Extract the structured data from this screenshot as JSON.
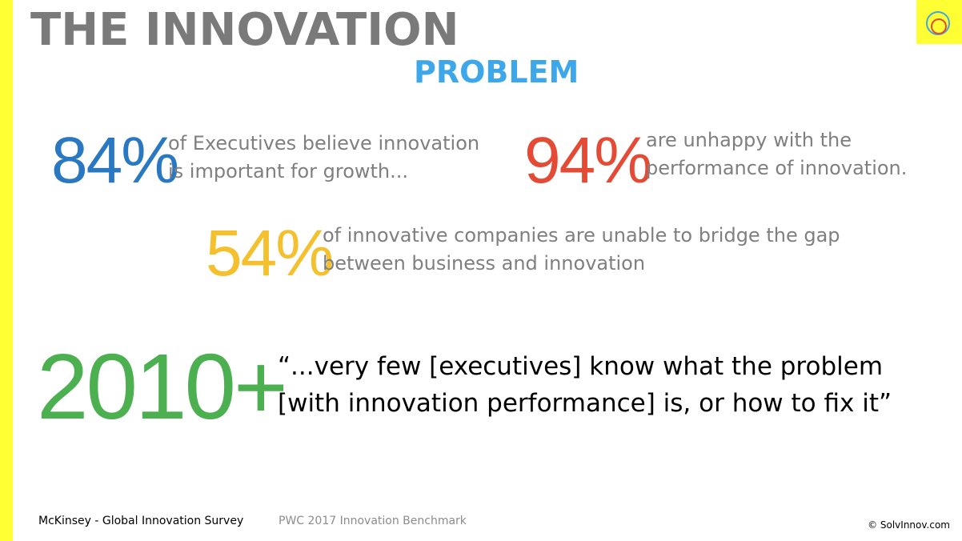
{
  "title": {
    "main": "THE INNOVATION",
    "sub": "PROBLEM"
  },
  "stats": [
    {
      "value": "84%",
      "lines": [
        "of Executives believe innovation",
        "is important for growth..."
      ]
    },
    {
      "value": "94%",
      "lines": [
        "are unhappy with the",
        "performance of innovation."
      ]
    },
    {
      "value": "54%",
      "lines": [
        "of innovative companies are unable to bridge the gap",
        "between business and innovation"
      ]
    },
    {
      "value": "2010+"
    }
  ],
  "quote": {
    "lines": [
      "“...very few [executives] know what the problem",
      "[with innovation performance] is, or how to fix it”"
    ]
  },
  "footer": {
    "source_1": "McKinsey - Global Innovation Survey",
    "source_2": "PWC 2017 Innovation Benchmark",
    "copyright": "© SolvInnov.com"
  },
  "colors": {
    "accent_yellow": "#ffff33",
    "title_gray": "#7a7a7a",
    "title_blue": "#3ea7ea",
    "stat_blue": "#2a78c2",
    "stat_red": "#e54a35",
    "stat_yellow": "#f5c02e",
    "stat_green": "#4caf50"
  },
  "logo": {
    "icon": "circles-logo-icon"
  }
}
